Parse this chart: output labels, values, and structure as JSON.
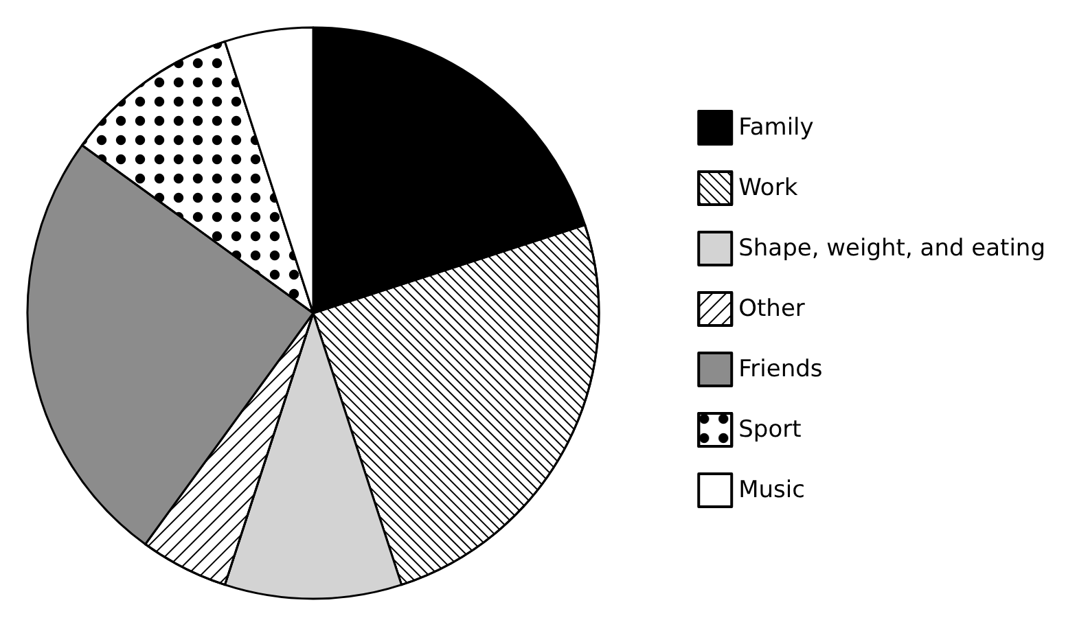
{
  "chart_data": {
    "type": "pie",
    "categories": [
      "Family",
      "Work",
      "Shape, weight, and eating",
      "Other",
      "Friends",
      "Sport",
      "Music"
    ],
    "values": [
      20,
      25,
      10,
      5,
      25,
      10,
      5
    ],
    "colors": [
      "#000000",
      "#ffffff",
      "#d3d3d3",
      "#ffffff",
      "#8c8c8c",
      "#ffffff",
      "#ffffff"
    ],
    "legend": "right"
  }
}
